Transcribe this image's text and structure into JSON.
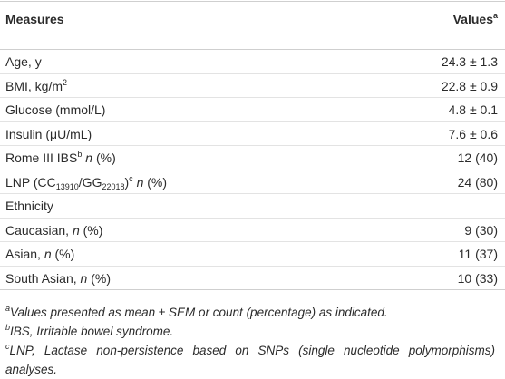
{
  "header": {
    "measures": "Measures",
    "values": [
      "Values",
      "a"
    ]
  },
  "rows": [
    {
      "label": [
        "Age, y"
      ],
      "value": "24.3 ± 1.3"
    },
    {
      "label": [
        "BMI, kg/m",
        "2"
      ],
      "value": "22.8 ± 0.9"
    },
    {
      "label": [
        "Glucose (mmol/L)"
      ],
      "value": "4.8 ± 0.1"
    },
    {
      "label": [
        "Insulin (μU/mL)"
      ],
      "value": "7.6 ± 0.6"
    },
    {
      "label": [
        "Rome III IBS",
        "b",
        "n",
        "(%)"
      ],
      "value": "12 (40)"
    },
    {
      "label": [
        "LNP (CC",
        "13910",
        "/GG",
        "22018",
        ")",
        "c",
        "n",
        "(%)"
      ],
      "value": "24 (80)"
    },
    {
      "label": [
        "Ethnicity"
      ]
    },
    {
      "label": [
        "Caucasian,",
        "n",
        "(%)"
      ],
      "value": "9 (30)"
    },
    {
      "label": [
        "Asian,",
        "n",
        "(%)"
      ],
      "value": "11 (37)"
    },
    {
      "label": [
        "South Asian,",
        "n",
        "(%)"
      ],
      "value": "10 (33)"
    }
  ],
  "footnotes": [
    [
      "a",
      "Values presented as mean ± SEM or count (percentage) as indicated."
    ],
    [
      "b",
      "IBS, Irritable bowel syndrome."
    ],
    [
      "c",
      "LNP, Lactase non-persistence based on SNPs (single nucleotide polymorphisms) analyses."
    ]
  ]
}
